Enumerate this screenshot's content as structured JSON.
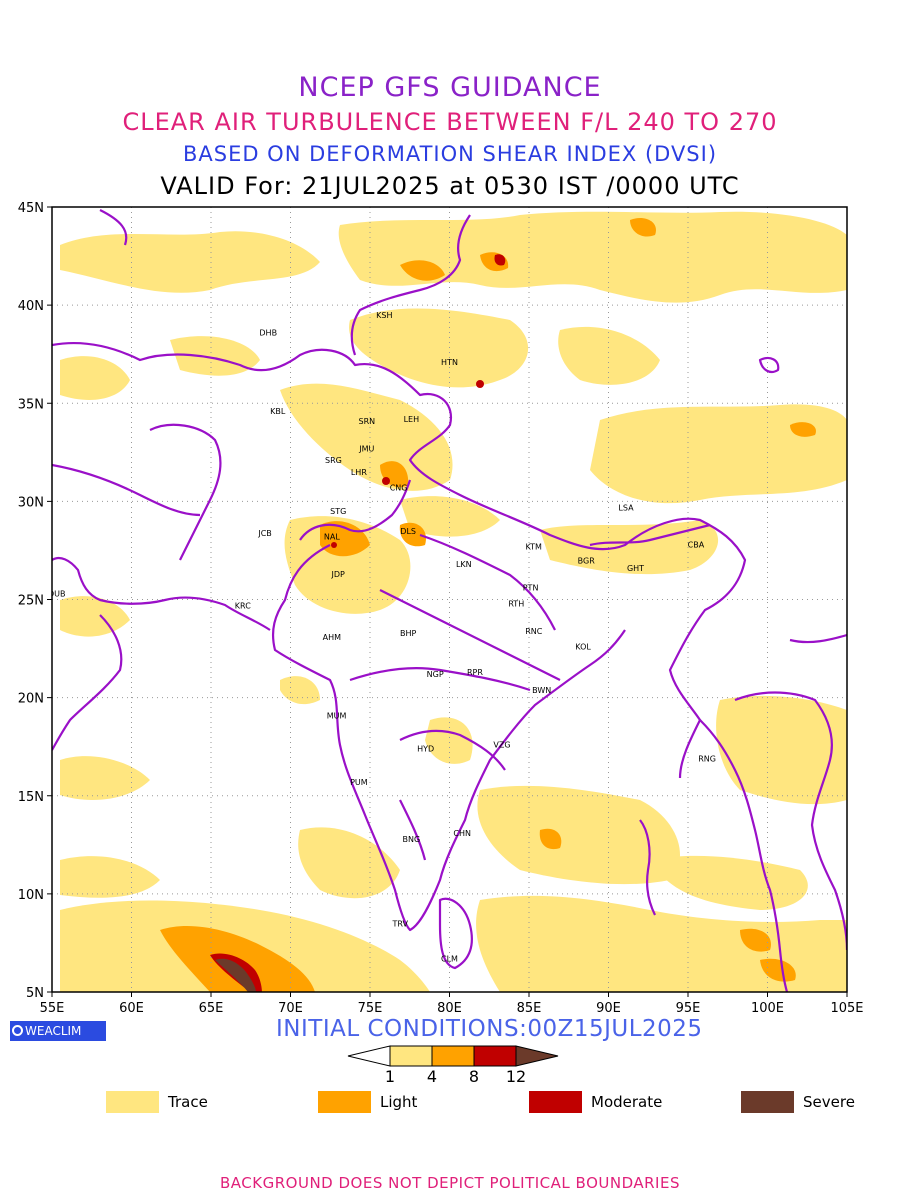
{
  "titles": {
    "line1": "NCEP GFS GUIDANCE",
    "line2": "CLEAR AIR TURBULENCE BETWEEN F/L 240 TO 270",
    "line3": "BASED ON DEFORMATION SHEAR INDEX (DVSI)",
    "line4": "VALID For: 21JUL2025 at 0530 IST /0000 UTC"
  },
  "map": {
    "lon_range": [
      55,
      105
    ],
    "lat_range": [
      5,
      45
    ],
    "lon_ticks": [
      "55E",
      "60E",
      "65E",
      "70E",
      "75E",
      "80E",
      "85E",
      "90E",
      "95E",
      "100E",
      "105E"
    ],
    "lat_ticks": [
      "45N",
      "40N",
      "35N",
      "30N",
      "25N",
      "20N",
      "15N",
      "10N",
      "5N"
    ],
    "grid": "dotted",
    "boundary_color": "#9a10c8",
    "stations": [
      {
        "code": "KSH",
        "lon": 75.9,
        "lat": 39.5
      },
      {
        "code": "DHB",
        "lon": 68.6,
        "lat": 38.6
      },
      {
        "code": "HTN",
        "lon": 80.0,
        "lat": 37.1
      },
      {
        "code": "KBL",
        "lon": 69.2,
        "lat": 34.6
      },
      {
        "code": "SRN",
        "lon": 74.8,
        "lat": 34.1
      },
      {
        "code": "LEH",
        "lon": 77.6,
        "lat": 34.2
      },
      {
        "code": "JMU",
        "lon": 74.8,
        "lat": 32.7
      },
      {
        "code": "SRG",
        "lon": 72.7,
        "lat": 32.1
      },
      {
        "code": "LHR",
        "lon": 74.3,
        "lat": 31.5
      },
      {
        "code": "CNG",
        "lon": 76.8,
        "lat": 30.7
      },
      {
        "code": "LSA",
        "lon": 91.1,
        "lat": 29.7
      },
      {
        "code": "STG",
        "lon": 73.0,
        "lat": 29.5
      },
      {
        "code": "JCB",
        "lon": 68.4,
        "lat": 28.4
      },
      {
        "code": "NAL",
        "lon": 72.6,
        "lat": 28.2
      },
      {
        "code": "DLS",
        "lon": 77.4,
        "lat": 28.5
      },
      {
        "code": "KTM",
        "lon": 85.3,
        "lat": 27.7
      },
      {
        "code": "CBA",
        "lon": 95.5,
        "lat": 27.8
      },
      {
        "code": "LKN",
        "lon": 80.9,
        "lat": 26.8
      },
      {
        "code": "BGR",
        "lon": 88.6,
        "lat": 27.0
      },
      {
        "code": "GHT",
        "lon": 91.7,
        "lat": 26.6
      },
      {
        "code": "JDP",
        "lon": 73.0,
        "lat": 26.3
      },
      {
        "code": "PTN",
        "lon": 85.1,
        "lat": 25.6
      },
      {
        "code": "DUB",
        "lon": 55.3,
        "lat": 25.3
      },
      {
        "code": "RTH",
        "lon": 84.2,
        "lat": 24.8
      },
      {
        "code": "KRC",
        "lon": 67.0,
        "lat": 24.7
      },
      {
        "code": "BHP",
        "lon": 77.4,
        "lat": 23.3
      },
      {
        "code": "AHM",
        "lon": 72.6,
        "lat": 23.1
      },
      {
        "code": "RNC",
        "lon": 85.3,
        "lat": 23.4
      },
      {
        "code": "KOL",
        "lon": 88.4,
        "lat": 22.6
      },
      {
        "code": "NGP",
        "lon": 79.1,
        "lat": 21.2
      },
      {
        "code": "RPR",
        "lon": 81.6,
        "lat": 21.3
      },
      {
        "code": "BWN",
        "lon": 85.8,
        "lat": 20.4
      },
      {
        "code": "MUM",
        "lon": 72.9,
        "lat": 19.1
      },
      {
        "code": "VZG",
        "lon": 83.3,
        "lat": 17.6
      },
      {
        "code": "HYD",
        "lon": 78.5,
        "lat": 17.4
      },
      {
        "code": "RNG",
        "lon": 96.2,
        "lat": 16.9
      },
      {
        "code": "PUM",
        "lon": 74.3,
        "lat": 15.7
      },
      {
        "code": "CHN",
        "lon": 80.8,
        "lat": 13.1
      },
      {
        "code": "BNG",
        "lon": 77.6,
        "lat": 12.8
      },
      {
        "code": "TRV",
        "lon": 76.9,
        "lat": 8.5
      },
      {
        "code": "CLM",
        "lon": 80.0,
        "lat": 6.7
      }
    ]
  },
  "logo": {
    "label": "WEACLIM"
  },
  "initial_conditions": "INITIAL CONDITIONS:00Z15JUL2025",
  "colorbar": {
    "levels": [
      "1",
      "4",
      "8",
      "12"
    ],
    "colors": [
      "#ffe680",
      "#ffa200",
      "#c00000",
      "#6b3a2a"
    ]
  },
  "legend": [
    {
      "label": "Trace",
      "color": "#ffe680"
    },
    {
      "label": "Light",
      "color": "#ffa200"
    },
    {
      "label": "Moderate",
      "color": "#c00000"
    },
    {
      "label": "Severe",
      "color": "#6b3a2a"
    }
  ],
  "footer": "BACKGROUND DOES NOT DEPICT POLITICAL BOUNDARIES"
}
